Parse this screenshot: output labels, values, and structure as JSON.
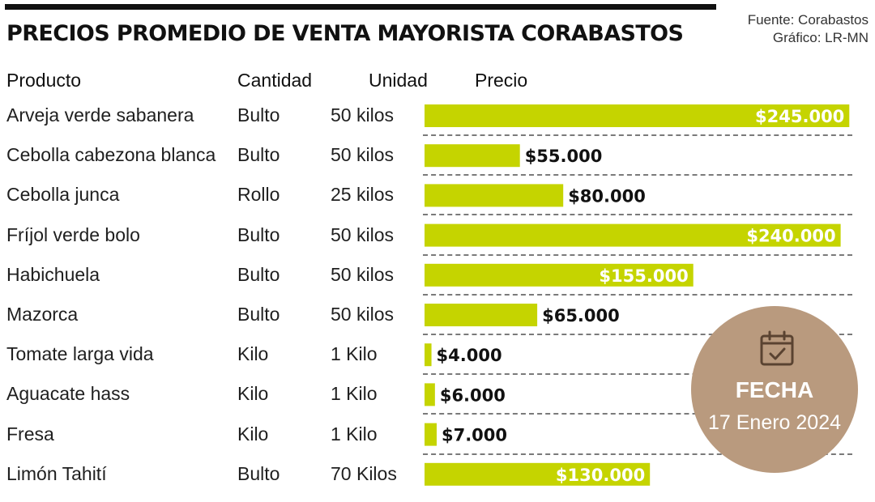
{
  "title": "PRECIOS PROMEDIO DE VENTA MAYORISTA CORABASTOS",
  "credits": {
    "source": "Fuente: Corabastos",
    "graphic": "Gráfico: LR-MN"
  },
  "headers": {
    "product": "Producto",
    "quantity": "Cantidad",
    "unit": "Unidad",
    "price": "Precio"
  },
  "chart_data": {
    "type": "bar",
    "orientation": "horizontal",
    "title": "PRECIOS PROMEDIO DE VENTA MAYORISTA CORABASTOS",
    "categories": [
      "Arveja verde sabanera",
      "Cebolla cabezona blanca",
      "Cebolla junca",
      "Fríjol verde bolo",
      "Habichuela",
      "Mazorca",
      "Tomate larga vida",
      "Aguacate hass",
      "Fresa",
      "Limón Tahití"
    ],
    "cantidad": [
      "Bulto",
      "Bulto",
      "Rollo",
      "Bulto",
      "Bulto",
      "Bulto",
      "Kilo",
      "Kilo",
      "Kilo",
      "Bulto"
    ],
    "unidad": [
      "50 kilos",
      "50 kilos",
      "25 kilos",
      "50 kilos",
      "50 kilos",
      "50 kilos",
      "1 Kilo",
      "1 Kilo",
      "1 Kilo",
      "70 Kilos"
    ],
    "values": [
      245000,
      55000,
      80000,
      240000,
      155000,
      65000,
      4000,
      6000,
      7000,
      130000
    ],
    "value_labels": [
      "$245.000",
      "$55.000",
      "$80.000",
      "$240.000",
      "$155.000",
      "$65.000",
      "$4.000",
      "$6.000",
      "$7.000",
      "$130.000"
    ],
    "xlim": [
      0,
      250000
    ],
    "bar_color": "#c5d400",
    "grid": false
  },
  "date": {
    "label": "FECHA",
    "value": "17 Enero 2024",
    "icon": "calendar-check-icon",
    "color": "#b99a7e"
  }
}
